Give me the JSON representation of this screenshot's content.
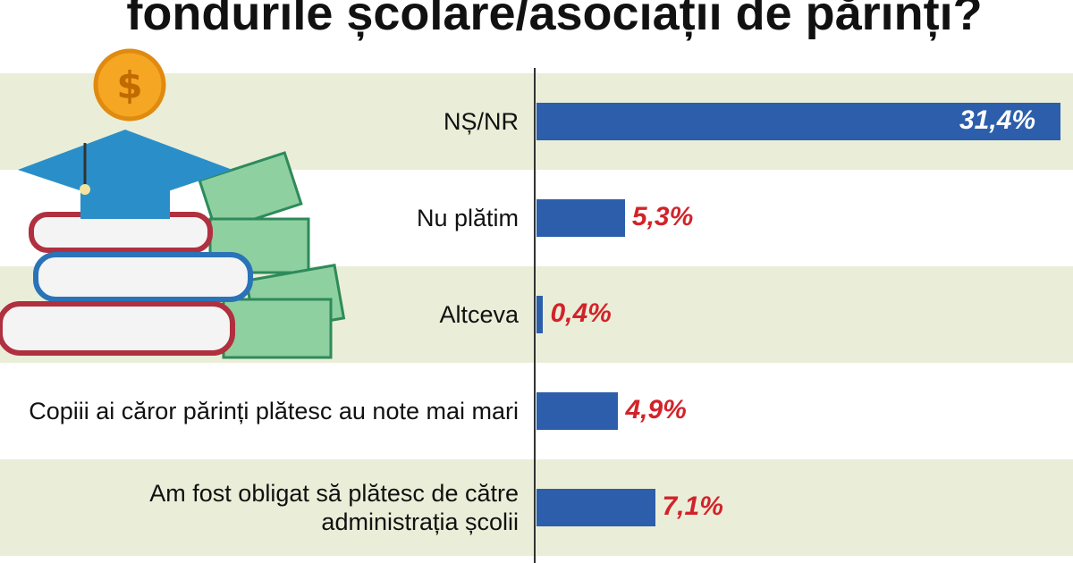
{
  "chart_data": {
    "type": "barh",
    "title": "fondurile școlare/asociații de părinți?",
    "categories": [
      "NȘ/NR",
      "Nu plătim",
      "Altceva",
      "Copiii ai căror părinți plătesc au note mai mari",
      "Am fost obligat să plătesc de către administrația școlii"
    ],
    "values": [
      31.4,
      5.3,
      0.4,
      4.9,
      7.1
    ],
    "value_labels": [
      "31,4%",
      "5,3%",
      "0,4%",
      "4,9%",
      "7,1%"
    ],
    "color": "#2c5eab"
  }
}
